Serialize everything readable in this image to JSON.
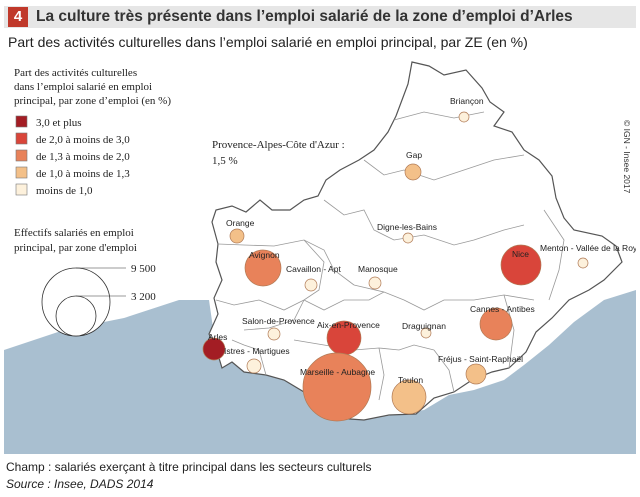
{
  "header": {
    "number": "4",
    "title": "La culture très présente dans l’emploi salarié de la zone d’emploi d’Arles",
    "subtitle": "Part des activités culturelles dans l’emploi salarié en emploi principal, par ZE (en %)"
  },
  "legend": {
    "share_title_lines": [
      "Part des activités culturelles",
      "dans l’emploi salarié en emploi",
      "principal, par zone d’emploi (en %)"
    ],
    "classes": [
      {
        "label": "3,0 et plus",
        "color": "#a31d24"
      },
      {
        "label": "de 2,0 à moins de 3,0",
        "color": "#d9453a"
      },
      {
        "label": "de 1,3 à moins de 2,0",
        "color": "#e8825a"
      },
      {
        "label": "de 1,0 à moins de 1,3",
        "color": "#f3c089"
      },
      {
        "label": "moins de 1,0",
        "color": "#fdf1dc"
      }
    ],
    "size_title_lines": [
      "Effectifs salariés en emploi",
      "principal, par zone d'emploi"
    ],
    "size_values": [
      "9 500",
      "3 200"
    ]
  },
  "region_note": {
    "lines": [
      "Provence-Alpes-Côte d'Azur :",
      "1,5 %"
    ]
  },
  "copyright": "© IGN - Insee 2017",
  "zones": [
    {
      "name": "Briançon",
      "class": 4
    },
    {
      "name": "Gap",
      "class": 3
    },
    {
      "name": "Digne-les-Bains",
      "class": 4
    },
    {
      "name": "Menton - Vallée de la Roya",
      "class": 4
    },
    {
      "name": "Orange",
      "class": 3
    },
    {
      "name": "Avignon",
      "class": 2
    },
    {
      "name": "Cavaillon - Apt",
      "class": 4
    },
    {
      "name": "Manosque",
      "class": 4
    },
    {
      "name": "Nice",
      "class": 1
    },
    {
      "name": "Salon-de-Provence",
      "class": 4
    },
    {
      "name": "Aix-en-Provence",
      "class": 1
    },
    {
      "name": "Cannes - Antibes",
      "class": 2
    },
    {
      "name": "Arles",
      "class": 0
    },
    {
      "name": "Istres - Martigues",
      "class": 4
    },
    {
      "name": "Draguignan",
      "class": 4
    },
    {
      "name": "Fréjus - Saint-Raphaël",
      "class": 3
    },
    {
      "name": "Marseille - Aubagne",
      "class": 2
    },
    {
      "name": "Toulon",
      "class": 3
    }
  ],
  "footer": {
    "champ": "Champ : salariés exerçant à titre principal dans les secteurs culturels",
    "source": "Source : Insee, DADS 2014"
  }
}
